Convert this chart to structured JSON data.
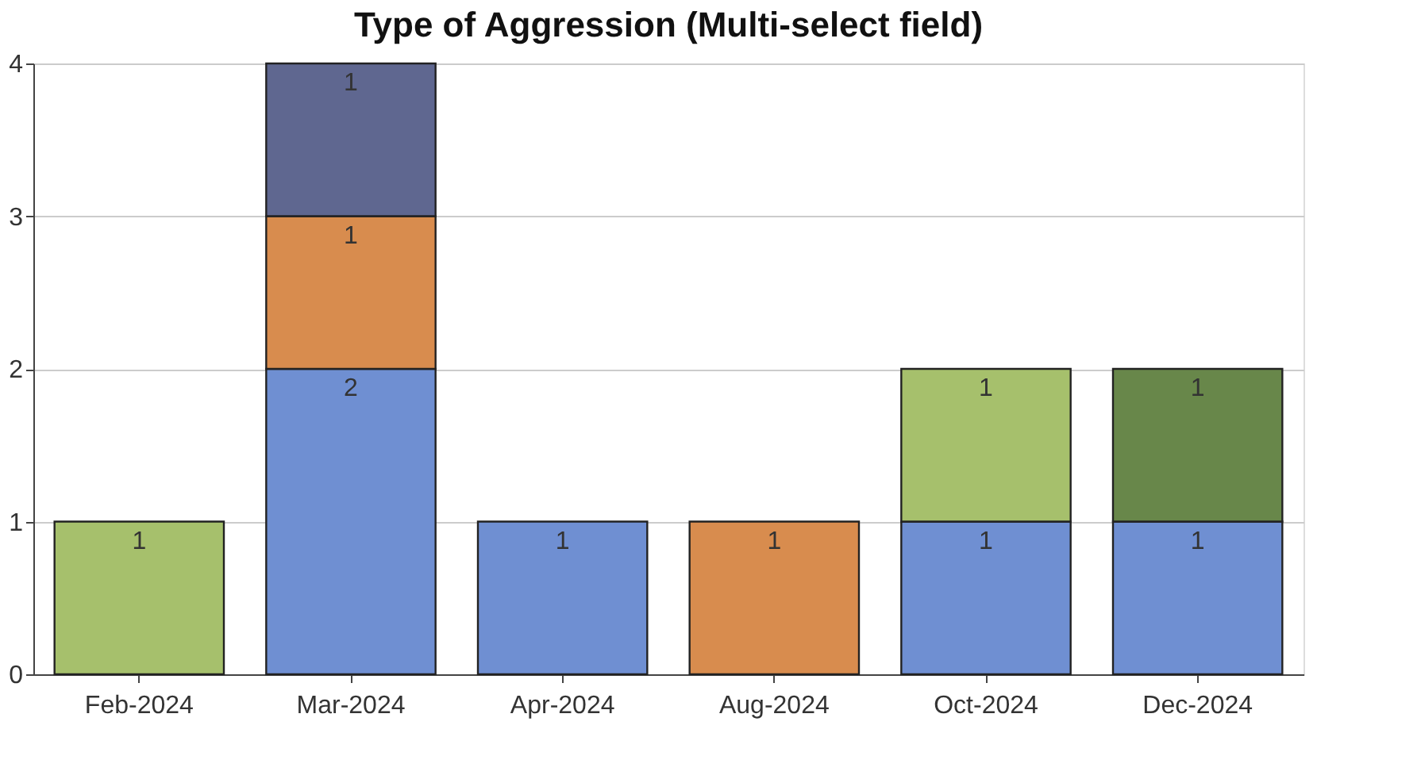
{
  "chart_data": {
    "type": "bar",
    "title": "Type of Aggression (Multi-select field)",
    "categories": [
      "Feb-2024",
      "Mar-2024",
      "Apr-2024",
      "Aug-2024",
      "Oct-2024",
      "Dec-2024"
    ],
    "stacked": true,
    "data_labels": true,
    "grid": "y",
    "ylim": [
      0,
      4
    ],
    "yticks": [
      0,
      1,
      2,
      3,
      4
    ],
    "series": [
      {
        "color": "#6f8fd2",
        "values": [
          null,
          2,
          1,
          null,
          1,
          1
        ]
      },
      {
        "color": "#d88c4e",
        "values": [
          null,
          1,
          null,
          1,
          null,
          null
        ]
      },
      {
        "color": "#5f6790",
        "values": [
          null,
          1,
          null,
          null,
          null,
          null
        ]
      },
      {
        "color": "#a6c06c",
        "values": [
          1,
          null,
          null,
          null,
          1,
          null
        ]
      },
      {
        "color": "#68874a",
        "values": [
          null,
          null,
          null,
          null,
          null,
          1
        ]
      }
    ]
  }
}
